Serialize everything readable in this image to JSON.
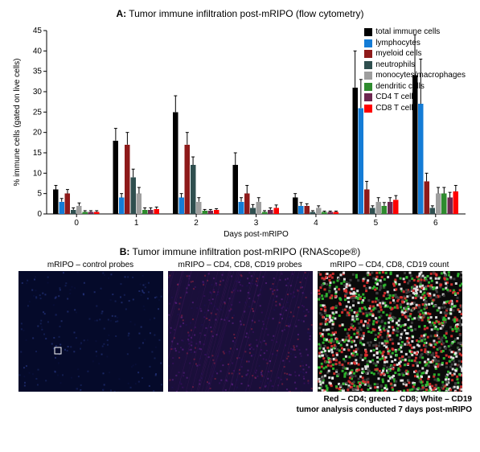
{
  "panelA": {
    "type": "bar",
    "title_prefix": "A:",
    "title": "Tumor immune infiltration post-mRIPO (flow cytometry)",
    "ylabel": "% immune cells (gated on live cells)",
    "xlabel": "Days post-mRIPO",
    "ylim": [
      0,
      45
    ],
    "ytick_step": 5,
    "x_categories": [
      0,
      1,
      2,
      3,
      4,
      5,
      6
    ],
    "bar_width": 0.085,
    "series": [
      {
        "name": "total immune cells",
        "color": "#000000",
        "values": [
          6,
          18,
          25,
          12,
          4,
          31,
          34
        ],
        "err": [
          1,
          3,
          4,
          3,
          1,
          9,
          10
        ]
      },
      {
        "name": "lymphocytes",
        "color": "#147cd6",
        "values": [
          3,
          4,
          4,
          3,
          2,
          26,
          27
        ],
        "err": [
          0.8,
          1,
          1,
          1,
          0.8,
          7,
          11
        ]
      },
      {
        "name": "myeloid cells",
        "color": "#8e1a1a",
        "values": [
          5,
          17,
          17,
          5,
          2,
          6,
          8
        ],
        "err": [
          1,
          3,
          3,
          2,
          0.5,
          2,
          2
        ]
      },
      {
        "name": "neutrophils",
        "color": "#2f4f4f",
        "values": [
          1,
          9,
          12,
          1.5,
          0.5,
          1.5,
          1.5
        ],
        "err": [
          0.5,
          2,
          2,
          0.8,
          0.3,
          0.5,
          0.5
        ]
      },
      {
        "name": "monocytes/macrophages",
        "color": "#9e9e9e",
        "values": [
          2,
          5,
          3,
          3,
          1.5,
          3,
          5
        ],
        "err": [
          0.7,
          1.5,
          1,
          1,
          0.5,
          1,
          1.5
        ]
      },
      {
        "name": "dendritic cells",
        "color": "#2e8b2e",
        "values": [
          0.5,
          1,
          0.8,
          0.5,
          0.5,
          2,
          5
        ],
        "err": [
          0.3,
          0.5,
          0.3,
          0.3,
          0.2,
          0.8,
          1.5
        ]
      },
      {
        "name": "CD4 T cells",
        "color": "#6d2750",
        "values": [
          0.5,
          1,
          0.8,
          1,
          0.5,
          3,
          4
        ],
        "err": [
          0.3,
          0.5,
          0.3,
          0.5,
          0.2,
          1,
          1.3
        ]
      },
      {
        "name": "CD8 T cells",
        "color": "#ff0000",
        "values": [
          0.5,
          1.2,
          1,
          1.5,
          0.5,
          3.5,
          5.5
        ],
        "err": [
          0.3,
          0.5,
          0.3,
          0.7,
          0.2,
          1,
          1.5
        ]
      }
    ],
    "title_fontsize": 12,
    "label_fontsize": 10,
    "background_color": "#ffffff",
    "axis_color": "#000000"
  },
  "panelB": {
    "title_prefix": "B:",
    "title": "Tumor immune infiltration post-mRIPO (RNAScope®)",
    "images": [
      {
        "caption": "mRIPO – control probes",
        "type": "dark-blue"
      },
      {
        "caption": "mRIPO – CD4, CD8, CD19 probes",
        "type": "dark-violet"
      },
      {
        "caption": "mRIPO – CD4, CD8, CD19 count",
        "type": "scatter-color"
      }
    ],
    "footer_line1": "Red – CD4; green – CD8; White – CD19",
    "footer_line2": "tumor analysis conducted 7 days post-mRIPO",
    "colors": {
      "bg1": "#050a2a",
      "bg2": "#1a0f3a",
      "bg3": "#0a0a0a",
      "scatter_red": "#e03030",
      "scatter_green": "#30c030",
      "scatter_white": "#eeeeee",
      "tiny_box": "#ffffff"
    }
  }
}
